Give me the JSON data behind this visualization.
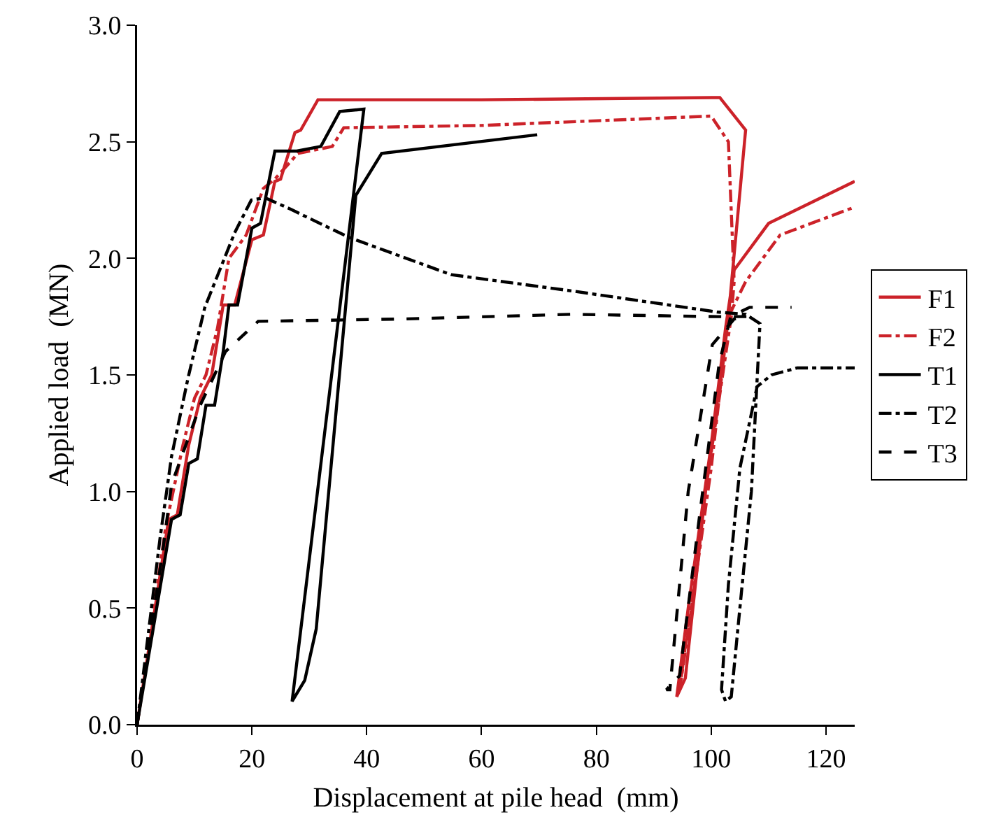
{
  "chart_data": {
    "type": "line",
    "xlabel": "Displacement at pile head  (mm)",
    "ylabel": "Applied load  (MN)",
    "xlim": [
      0,
      125
    ],
    "xticks": [
      0,
      20,
      40,
      60,
      80,
      100,
      120
    ],
    "ylim": [
      0,
      3.0
    ],
    "yticks": [
      {
        "value": 0,
        "label": "0.0"
      },
      {
        "value": 0.5,
        "label": "0.5"
      },
      {
        "value": 1,
        "label": "1.0"
      },
      {
        "value": 1.5,
        "label": "1.5"
      },
      {
        "value": 2,
        "label": "2.0"
      },
      {
        "value": 2.5,
        "label": "2.5"
      },
      {
        "value": 3,
        "label": "3.0"
      }
    ],
    "grid": false,
    "legend": "right",
    "series": [
      {
        "name": "F1",
        "color": "#cc2229",
        "line_style": "solid",
        "x": [
          0,
          5.5,
          7,
          9,
          11,
          13,
          15,
          17,
          20,
          22,
          24,
          25,
          27.5,
          28.5,
          31.5,
          60,
          101.5,
          106,
          103,
          99,
          95.5,
          94,
          96,
          100,
          102.5,
          104,
          110,
          125
        ],
        "values": [
          0,
          0.88,
          0.9,
          1.2,
          1.4,
          1.5,
          1.8,
          1.8,
          2.08,
          2.1,
          2.33,
          2.34,
          2.54,
          2.55,
          2.68,
          2.68,
          2.69,
          2.55,
          1.75,
          1.0,
          0.2,
          0.12,
          0.5,
          1.2,
          1.7,
          1.95,
          2.15,
          2.33
        ]
      },
      {
        "name": "F2",
        "color": "#cc2229",
        "line_style": "dashdot",
        "x": [
          0,
          5,
          8,
          10,
          12,
          14,
          16,
          19,
          22,
          24,
          28,
          34,
          36,
          60,
          100,
          103,
          104,
          103.5,
          99,
          94.5,
          96,
          100,
          103,
          106,
          112,
          125
        ],
        "values": [
          0,
          0.85,
          1.2,
          1.4,
          1.5,
          1.7,
          2.0,
          2.1,
          2.3,
          2.34,
          2.45,
          2.48,
          2.56,
          2.57,
          2.61,
          2.5,
          1.9,
          1.75,
          1.0,
          0.15,
          0.4,
          1.1,
          1.75,
          1.9,
          2.1,
          2.22
        ]
      },
      {
        "name": "T1",
        "color": "#000000",
        "line_style": "solid",
        "x": [
          0,
          6,
          7.5,
          9,
          10.5,
          12,
          13.5,
          15,
          16,
          17.5,
          20,
          21.5,
          24,
          27.8,
          32,
          35.3,
          39.5,
          27,
          29.2,
          31.2,
          38.1,
          42.6,
          69.7
        ],
        "values": [
          0,
          0.88,
          0.9,
          1.12,
          1.14,
          1.37,
          1.37,
          1.6,
          1.8,
          1.8,
          2.13,
          2.15,
          2.46,
          2.46,
          2.48,
          2.63,
          2.64,
          0.1,
          0.19,
          0.41,
          2.27,
          2.45,
          2.53
        ]
      },
      {
        "name": "T2",
        "color": "#000000",
        "line_style": "dashdot",
        "x": [
          0,
          4,
          6,
          8.9,
          11.8,
          17,
          19.9,
          22.3,
          26.8,
          36.9,
          54.7,
          75.8,
          101,
          106,
          108.5,
          107,
          105,
          103.5,
          102.5,
          101.8,
          103,
          105,
          108,
          110.5,
          115,
          125
        ],
        "values": [
          0,
          0.8,
          1.15,
          1.49,
          1.79,
          2.11,
          2.25,
          2.26,
          2.21,
          2.09,
          1.93,
          1.86,
          1.77,
          1.76,
          1.72,
          1.0,
          0.5,
          0.12,
          0.1,
          0.15,
          0.6,
          1.1,
          1.45,
          1.5,
          1.53,
          1.53
        ]
      },
      {
        "name": "T3",
        "color": "#000000",
        "line_style": "dashed",
        "x": [
          0,
          4.5,
          6,
          11,
          15.4,
          21.1,
          46.6,
          75.8,
          101,
          106.3,
          104,
          100.2,
          96,
          92.8,
          92.2,
          94.5,
          98,
          101.4,
          103.4,
          106.7,
          114
        ],
        "values": [
          0,
          0.75,
          1.03,
          1.37,
          1.6,
          1.73,
          1.74,
          1.76,
          1.75,
          1.75,
          1.74,
          1.63,
          1.0,
          0.15,
          0.15,
          0.21,
          0.9,
          1.55,
          1.75,
          1.79,
          1.79
        ]
      }
    ]
  }
}
